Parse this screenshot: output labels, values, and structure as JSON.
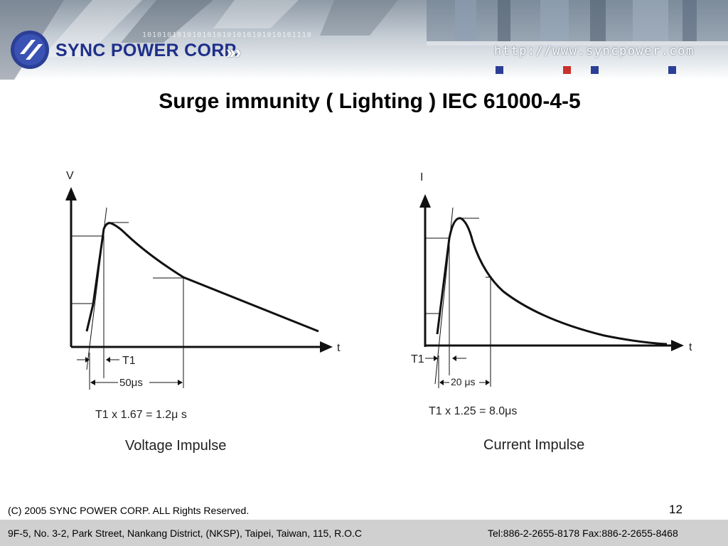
{
  "header": {
    "brand_name": "SYNC POWER CORP.",
    "url": "http://www.syncpower.com",
    "binary_strip": "1010101010101010101010101010101110",
    "accent_colors": [
      "#2b3f96",
      "#c8312c"
    ]
  },
  "slide": {
    "title": "Surge immunity ( Lighting ) IEC 61000-4-5",
    "page_number": "12"
  },
  "voltage_diagram": {
    "y_label": "V",
    "x_label": "t",
    "t1_label": "T1",
    "duration_label": "50μs",
    "formula": "T1 x 1.67 = 1.2μ s",
    "caption": "Voltage Impulse"
  },
  "current_diagram": {
    "y_label": "I",
    "x_label": "t",
    "t1_label": "T1",
    "duration_label": "20 μs",
    "formula": "T1 x 1.25 = 8.0μs",
    "caption": "Current Impulse"
  },
  "footer": {
    "copyright": "(C) 2005 SYNC POWER CORP. ALL Rights Reserved.",
    "address": "9F-5, No. 3-2, Park Street, Nankang District, (NKSP), Taipei,  Taiwan, 115, R.O.C",
    "contact": "Tel:886-2-2655-8178  Fax:886-2-2655-8468",
    "bar_color": "#d0d0d0"
  }
}
